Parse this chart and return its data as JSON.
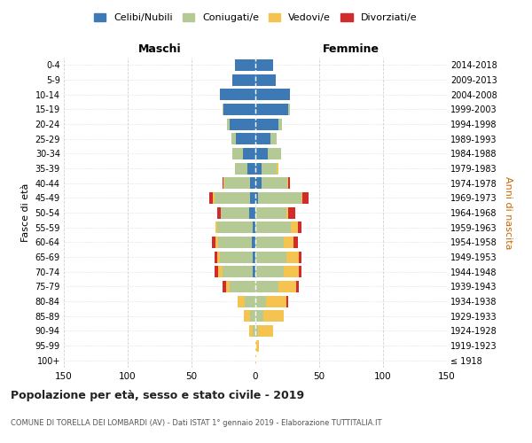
{
  "age_groups": [
    "100+",
    "95-99",
    "90-94",
    "85-89",
    "80-84",
    "75-79",
    "70-74",
    "65-69",
    "60-64",
    "55-59",
    "50-54",
    "45-49",
    "40-44",
    "35-39",
    "30-34",
    "25-29",
    "20-24",
    "15-19",
    "10-14",
    "5-9",
    "0-4"
  ],
  "birth_years": [
    "≤ 1918",
    "1919-1923",
    "1924-1928",
    "1929-1933",
    "1934-1938",
    "1939-1943",
    "1944-1948",
    "1949-1953",
    "1954-1958",
    "1959-1963",
    "1964-1968",
    "1969-1973",
    "1974-1978",
    "1979-1983",
    "1984-1988",
    "1989-1993",
    "1994-1998",
    "1999-2003",
    "2004-2008",
    "2009-2013",
    "2014-2018"
  ],
  "colors": {
    "celibi": "#3d7ab5",
    "coniugati": "#b5c994",
    "vedovi": "#f5c34f",
    "divorziati": "#d12b2b"
  },
  "maschi": {
    "celibi": [
      0,
      0,
      0,
      0,
      0,
      0,
      2,
      2,
      3,
      2,
      5,
      4,
      4,
      6,
      10,
      15,
      20,
      25,
      28,
      18,
      16
    ],
    "coniugati": [
      0,
      0,
      2,
      4,
      8,
      20,
      24,
      26,
      26,
      28,
      22,
      28,
      20,
      10,
      8,
      4,
      2,
      1,
      0,
      0,
      0
    ],
    "vedovi": [
      0,
      0,
      3,
      5,
      6,
      3,
      3,
      2,
      2,
      1,
      0,
      1,
      1,
      0,
      0,
      0,
      0,
      0,
      0,
      0,
      0
    ],
    "divorziati": [
      0,
      0,
      0,
      0,
      0,
      3,
      3,
      2,
      3,
      0,
      3,
      3,
      1,
      0,
      0,
      0,
      0,
      0,
      0,
      0,
      0
    ]
  },
  "femmine": {
    "celibi": [
      0,
      0,
      0,
      0,
      0,
      0,
      0,
      0,
      0,
      0,
      0,
      2,
      5,
      5,
      10,
      12,
      18,
      26,
      27,
      16,
      14
    ],
    "coniugati": [
      0,
      0,
      2,
      6,
      8,
      18,
      22,
      24,
      22,
      28,
      24,
      34,
      20,
      12,
      10,
      5,
      3,
      1,
      0,
      0,
      0
    ],
    "vedovi": [
      1,
      3,
      12,
      16,
      16,
      14,
      12,
      10,
      8,
      5,
      2,
      1,
      1,
      1,
      0,
      0,
      0,
      0,
      0,
      0,
      0
    ],
    "divorziati": [
      0,
      0,
      0,
      0,
      2,
      2,
      2,
      2,
      3,
      3,
      5,
      5,
      1,
      0,
      0,
      0,
      0,
      0,
      0,
      0,
      0
    ]
  },
  "xlim": 150,
  "title": "Popolazione per età, sesso e stato civile - 2019",
  "subtitle": "COMUNE DI TORELLA DEI LOMBARDI (AV) - Dati ISTAT 1° gennaio 2019 - Elaborazione TUTTITALIA.IT",
  "ylabel": "Fasce di età",
  "ylabel_right": "Anni di nascita",
  "xlabel_left": "Maschi",
  "xlabel_right": "Femmine",
  "legend_labels": [
    "Celibi/Nubili",
    "Coniugati/e",
    "Vedovi/e",
    "Divorziati/e"
  ],
  "background_color": "#ffffff",
  "grid_color": "#cccccc"
}
